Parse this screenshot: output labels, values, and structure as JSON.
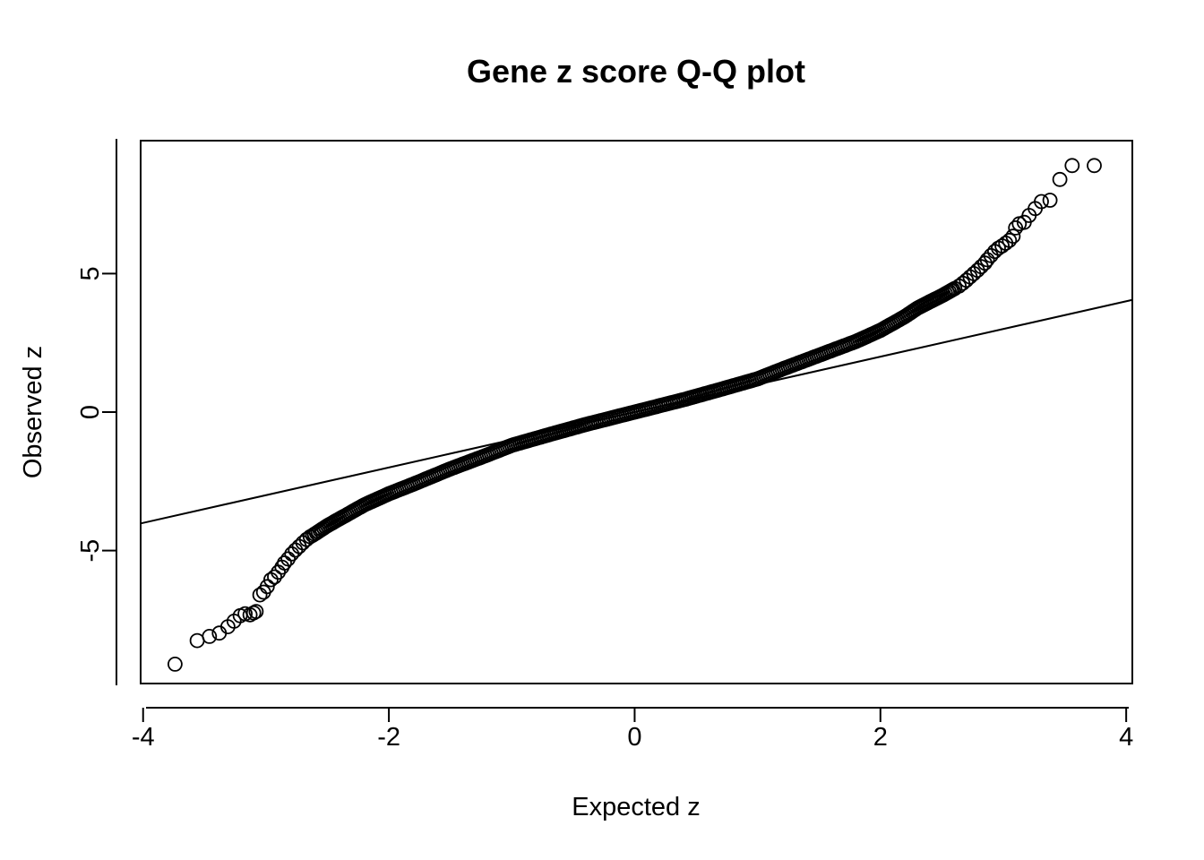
{
  "chart_data": {
    "type": "scatter",
    "title": "Gene z score Q-Q plot",
    "xlabel": "Expected z",
    "ylabel": "Observed z",
    "xlim": [
      -4.02,
      4.05
    ],
    "ylim": [
      -9.8,
      9.8
    ],
    "x_ticks": [
      -4,
      -2,
      0,
      2,
      4
    ],
    "y_ticks": [
      -5,
      0,
      5
    ],
    "x_tick_labels": [
      "-4",
      "-2",
      "0",
      "2",
      "4"
    ],
    "y_tick_labels": [
      "-5",
      "0",
      "5"
    ],
    "grid": false,
    "legend": "none",
    "reference_line": {
      "slope": 1,
      "intercept": 0
    },
    "points": [
      [
        -3.74,
        -9.1
      ],
      [
        -3.56,
        -8.25
      ],
      [
        -3.46,
        -8.1
      ],
      [
        -3.38,
        -7.98
      ],
      [
        -3.31,
        -7.75
      ],
      [
        -3.26,
        -7.55
      ],
      [
        -3.21,
        -7.35
      ],
      [
        -3.17,
        -7.28
      ],
      [
        -3.13,
        -7.32
      ],
      [
        -3.1,
        -7.25
      ],
      [
        -3.08,
        -7.2
      ],
      [
        -3.05,
        -6.6
      ],
      [
        -3.02,
        -6.5
      ],
      [
        -2.99,
        -6.3
      ],
      [
        -2.96,
        -6.05
      ],
      [
        -2.93,
        -5.95
      ],
      [
        -2.9,
        -5.78
      ],
      [
        -2.87,
        -5.6
      ],
      [
        -2.85,
        -5.45
      ],
      [
        -2.82,
        -5.3
      ],
      [
        -2.79,
        -5.12
      ],
      [
        -2.76,
        -4.98
      ],
      [
        -2.73,
        -4.85
      ],
      [
        -2.7,
        -4.72
      ],
      [
        -2.67,
        -4.6
      ],
      [
        -2.64,
        -4.5
      ],
      [
        3.74,
        8.9
      ],
      [
        3.56,
        8.9
      ],
      [
        3.46,
        8.4
      ],
      [
        3.38,
        7.65
      ],
      [
        3.31,
        7.6
      ],
      [
        3.26,
        7.35
      ],
      [
        3.21,
        7.1
      ],
      [
        3.17,
        6.85
      ],
      [
        3.13,
        6.8
      ],
      [
        3.1,
        6.65
      ],
      [
        3.08,
        6.35
      ],
      [
        3.05,
        6.2
      ],
      [
        3.02,
        6.1
      ],
      [
        2.99,
        6.0
      ],
      [
        2.96,
        5.92
      ],
      [
        2.93,
        5.8
      ],
      [
        2.9,
        5.65
      ],
      [
        2.87,
        5.5
      ],
      [
        2.85,
        5.38
      ],
      [
        2.82,
        5.25
      ],
      [
        2.79,
        5.12
      ],
      [
        2.76,
        5.0
      ],
      [
        2.73,
        4.88
      ],
      [
        2.7,
        4.76
      ],
      [
        2.67,
        4.65
      ],
      [
        2.64,
        4.55
      ]
    ],
    "body_curve": [
      [
        -2.62,
        -4.45
      ],
      [
        -2.5,
        -4.1
      ],
      [
        -2.4,
        -3.85
      ],
      [
        -2.2,
        -3.35
      ],
      [
        -2.0,
        -2.95
      ],
      [
        -1.8,
        -2.6
      ],
      [
        -1.5,
        -2.05
      ],
      [
        -1.2,
        -1.55
      ],
      [
        -1.0,
        -1.2
      ],
      [
        -0.7,
        -0.82
      ],
      [
        -0.4,
        -0.45
      ],
      [
        0.0,
        0.0
      ],
      [
        0.4,
        0.45
      ],
      [
        0.7,
        0.82
      ],
      [
        1.0,
        1.2
      ],
      [
        1.2,
        1.55
      ],
      [
        1.5,
        2.05
      ],
      [
        1.8,
        2.55
      ],
      [
        2.0,
        2.95
      ],
      [
        2.2,
        3.45
      ],
      [
        2.3,
        3.75
      ],
      [
        2.4,
        3.98
      ],
      [
        2.5,
        4.2
      ],
      [
        2.62,
        4.5
      ]
    ]
  }
}
